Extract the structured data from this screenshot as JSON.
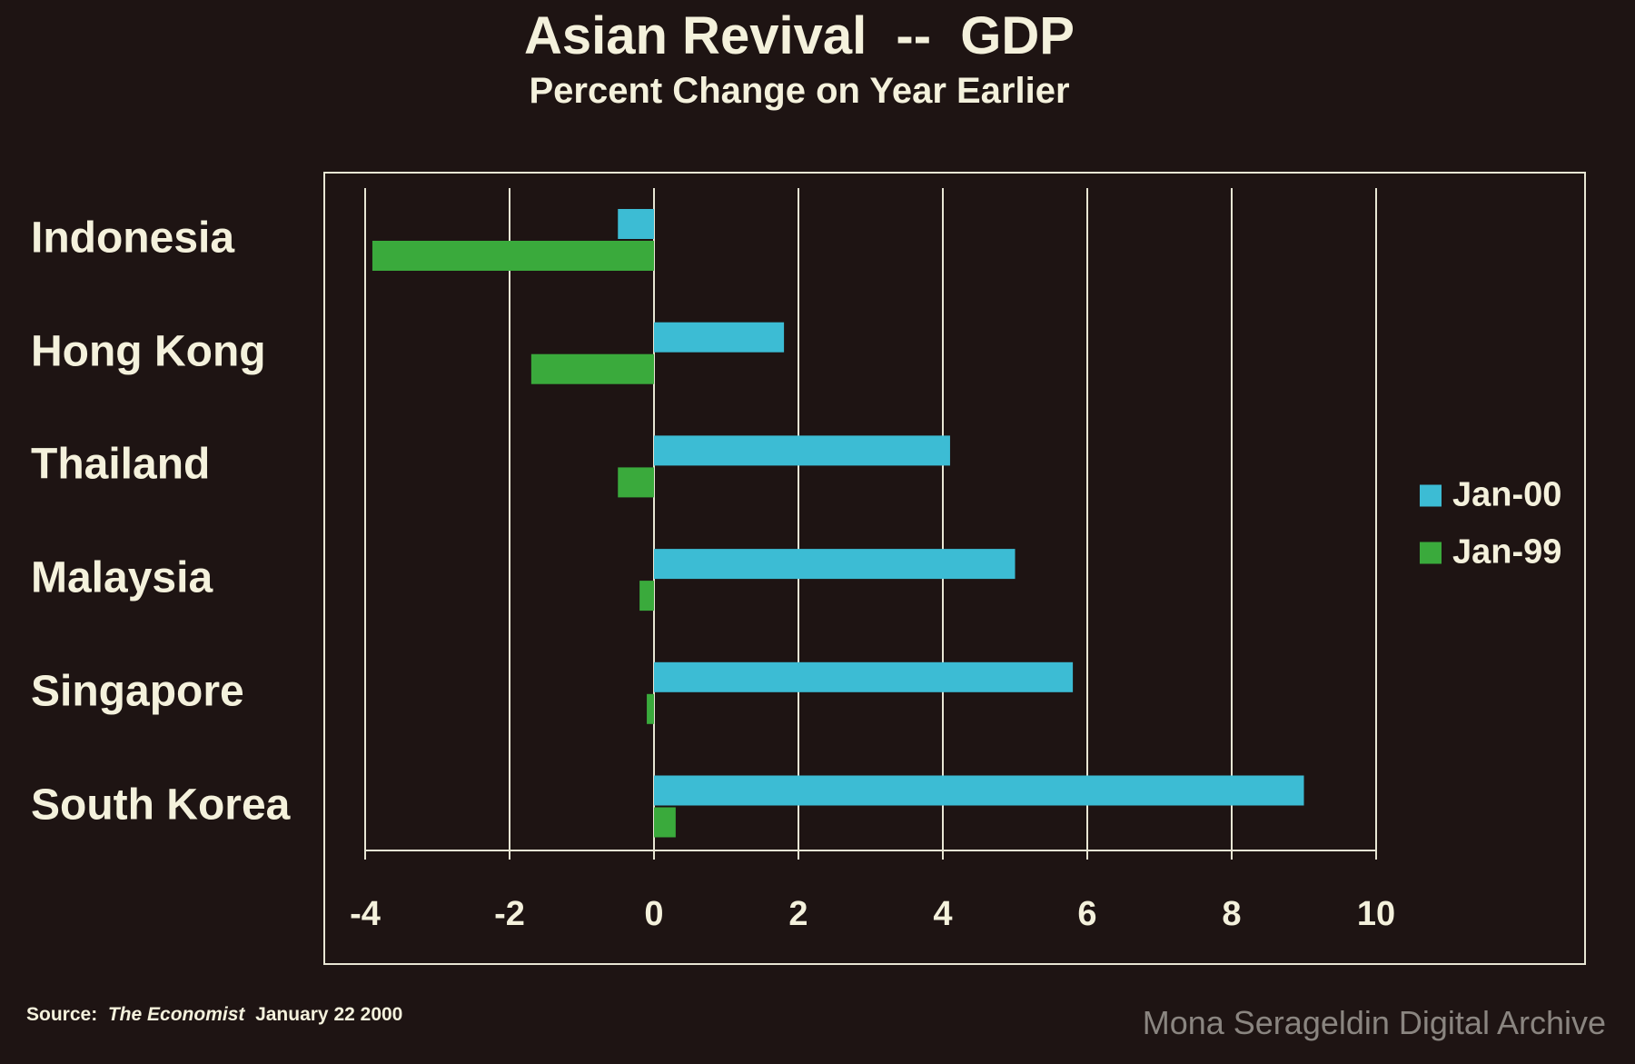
{
  "chart_data": {
    "type": "bar",
    "orientation": "horizontal",
    "title": "Asian Revival  --  GDP",
    "subtitle": "Percent Change on Year Earlier",
    "categories": [
      "Indonesia",
      "Hong Kong",
      "Thailand",
      "Malaysia",
      "Singapore",
      "South Korea"
    ],
    "series": [
      {
        "name": "Jan-00",
        "color": "#3cbcd4",
        "values": [
          -0.5,
          1.8,
          4.1,
          5.0,
          5.8,
          9.0
        ]
      },
      {
        "name": "Jan-99",
        "color": "#3aaa3c",
        "values": [
          -3.9,
          -1.7,
          -0.5,
          -0.2,
          -0.1,
          0.3
        ]
      }
    ],
    "xlim": [
      -4,
      10
    ],
    "xticks": [
      "-4",
      "-2",
      "0",
      "2",
      "4",
      "6",
      "8",
      "10"
    ],
    "xlabel": "",
    "ylabel": "",
    "grid": "vertical",
    "legend": "right"
  },
  "source": {
    "label": "Source:",
    "publication": "The Economist",
    "date": "January 22 2000"
  },
  "watermark": "Mona Serageldin Digital Archive"
}
